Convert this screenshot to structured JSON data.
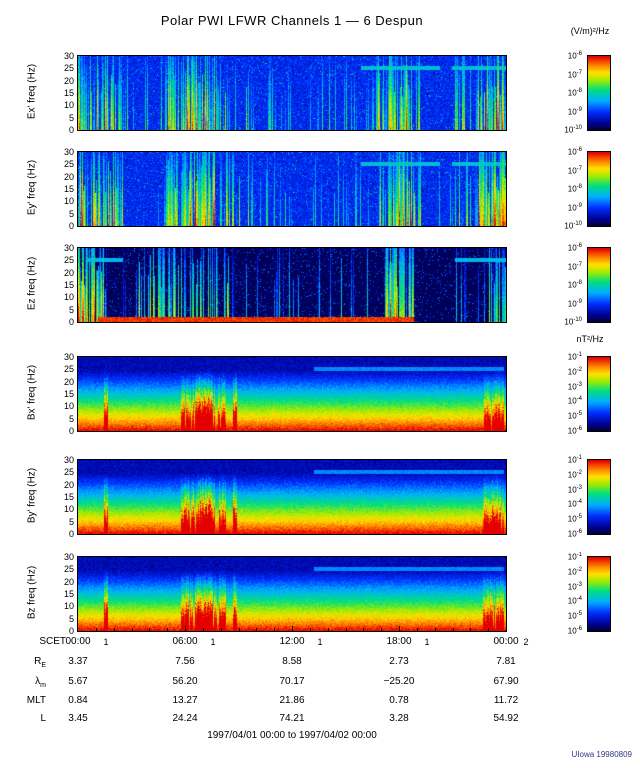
{
  "title": "Polar PWI LFWR Channels 1 — 6 Despun",
  "footer_range": "1997/04/01 00:00 to 1997/04/02 00:00",
  "credit": "UIowa 19980809",
  "x_axis": {
    "label": "SCET",
    "ticks": [
      "00:00",
      "06:00",
      "12:00",
      "18:00",
      "00:00"
    ],
    "day_marks": [
      "1",
      "1",
      "1",
      "1",
      "2"
    ]
  },
  "colorbars": {
    "electric": {
      "unit": "(V/m)²/Hz",
      "base": "10",
      "exponents": [
        "-6",
        "-7",
        "-8",
        "-9",
        "-10"
      ]
    },
    "magnetic": {
      "unit": "nT²/Hz",
      "base": "10",
      "exponents": [
        "-1",
        "-2",
        "-3",
        "-4",
        "-5",
        "-6"
      ]
    }
  },
  "ephemeris": {
    "rows": [
      {
        "label": "R",
        "sub": "E",
        "values": [
          "3.37",
          "7.56",
          "8.58",
          "2.73",
          "7.81"
        ]
      },
      {
        "label": "λ",
        "sub": "m",
        "values": [
          "5.67",
          "56.20",
          "70.17",
          "−25.20",
          "67.90"
        ]
      },
      {
        "label": "MLT",
        "sub": "",
        "values": [
          "0.84",
          "13.27",
          "21.86",
          "0.78",
          "11.72"
        ]
      },
      {
        "label": "L",
        "sub": "",
        "values": [
          "3.45",
          "24.24",
          "74.21",
          "3.28",
          "54.92"
        ]
      }
    ]
  },
  "chart_data": {
    "type": "heatmap",
    "title": "Polar PWI LFWR Channels 1 — 6 Despun",
    "time_range": "1997/04/01 00:00 to 1997/04/02 00:00",
    "x_ticks": [
      "00:00",
      "06:00",
      "12:00",
      "18:00",
      "00:00"
    ],
    "x_day_marks": [
      "1",
      "1",
      "1",
      "1",
      "2"
    ],
    "y_range_hz": [
      0,
      30
    ],
    "y_ticks_hz": [
      0,
      5,
      10,
      15,
      20,
      25,
      30
    ],
    "panels": [
      {
        "id": "ex",
        "ylabel": "Ex' freq (Hz)",
        "kind": "E",
        "colorbar": "electric",
        "seed": 11,
        "scale_range": [
          "1e-10",
          "1e-6"
        ],
        "events": [
          {
            "x0": 0.0,
            "x1": 0.017,
            "density": 0.97,
            "amp": 1.0
          },
          {
            "x0": 0.017,
            "x1": 0.105,
            "density": 0.72,
            "amp": 0.88
          },
          {
            "x0": 0.105,
            "x1": 0.2,
            "density": 0.1,
            "amp": 0.62
          },
          {
            "x0": 0.2,
            "x1": 0.25,
            "density": 0.75,
            "amp": 0.85
          },
          {
            "x0": 0.25,
            "x1": 0.32,
            "density": 0.95,
            "amp": 1.0
          },
          {
            "x0": 0.32,
            "x1": 0.35,
            "density": 0.7,
            "amp": 0.8
          },
          {
            "x0": 0.35,
            "x1": 0.43,
            "density": 0.16,
            "amp": 0.7
          },
          {
            "x0": 0.43,
            "x1": 0.7,
            "density": 0.2,
            "amp": 0.6
          },
          {
            "x0": 0.7,
            "x1": 0.75,
            "density": 0.7,
            "amp": 0.85
          },
          {
            "x0": 0.75,
            "x1": 0.78,
            "density": 0.97,
            "amp": 1.0
          },
          {
            "x0": 0.78,
            "x1": 0.8,
            "density": 0.6,
            "amp": 0.8
          },
          {
            "x0": 0.8,
            "x1": 0.87,
            "density": 0.07,
            "amp": 0.5
          },
          {
            "x0": 0.87,
            "x1": 0.93,
            "density": 0.45,
            "amp": 0.7
          },
          {
            "x0": 0.93,
            "x1": 0.97,
            "density": 0.8,
            "amp": 0.95
          },
          {
            "x0": 0.97,
            "x1": 1.0,
            "density": 0.95,
            "amp": 1.0
          }
        ],
        "hlines": [
          {
            "f": 25.5,
            "amp": 0.42,
            "segs": [
              [
                0.66,
                0.845
              ],
              [
                0.872,
                1.0
              ]
            ]
          }
        ]
      },
      {
        "id": "ey",
        "ylabel": "Ey' freq (Hz)",
        "kind": "E",
        "colorbar": "electric",
        "seed": 23,
        "scale_range": [
          "1e-10",
          "1e-6"
        ],
        "events": [
          {
            "x0": 0.0,
            "x1": 0.017,
            "density": 0.97,
            "amp": 1.0
          },
          {
            "x0": 0.017,
            "x1": 0.105,
            "density": 0.72,
            "amp": 0.88
          },
          {
            "x0": 0.105,
            "x1": 0.2,
            "density": 0.1,
            "amp": 0.62
          },
          {
            "x0": 0.2,
            "x1": 0.25,
            "density": 0.75,
            "amp": 0.85
          },
          {
            "x0": 0.25,
            "x1": 0.32,
            "density": 0.95,
            "amp": 1.0
          },
          {
            "x0": 0.32,
            "x1": 0.35,
            "density": 0.7,
            "amp": 0.8
          },
          {
            "x0": 0.35,
            "x1": 0.43,
            "density": 0.16,
            "amp": 0.7
          },
          {
            "x0": 0.43,
            "x1": 0.7,
            "density": 0.2,
            "amp": 0.6
          },
          {
            "x0": 0.7,
            "x1": 0.75,
            "density": 0.7,
            "amp": 0.85
          },
          {
            "x0": 0.75,
            "x1": 0.78,
            "density": 0.97,
            "amp": 1.0
          },
          {
            "x0": 0.78,
            "x1": 0.8,
            "density": 0.6,
            "amp": 0.8
          },
          {
            "x0": 0.8,
            "x1": 0.87,
            "density": 0.07,
            "amp": 0.5
          },
          {
            "x0": 0.87,
            "x1": 0.93,
            "density": 0.45,
            "amp": 0.7
          },
          {
            "x0": 0.93,
            "x1": 0.97,
            "density": 0.8,
            "amp": 0.95
          },
          {
            "x0": 0.97,
            "x1": 1.0,
            "density": 0.95,
            "amp": 1.0
          }
        ],
        "hlines": [
          {
            "f": 25.5,
            "amp": 0.42,
            "segs": [
              [
                0.66,
                0.845
              ],
              [
                0.872,
                1.0
              ]
            ]
          }
        ]
      },
      {
        "id": "ez",
        "ylabel": "Ez freq (Hz)",
        "kind": "E",
        "background": "dark",
        "colorbar": "electric",
        "seed": 37,
        "scale_range": [
          "1e-10",
          "1e-6"
        ],
        "events": [
          {
            "x0": 0.0,
            "x1": 0.022,
            "density": 1.0,
            "amp": 1.0
          },
          {
            "x0": 0.022,
            "x1": 0.06,
            "density": 0.85,
            "amp": 0.95
          },
          {
            "x0": 0.06,
            "x1": 0.13,
            "density": 0.1,
            "amp": 0.45
          },
          {
            "x0": 0.13,
            "x1": 0.36,
            "density": 0.55,
            "amp": 0.8
          },
          {
            "x0": 0.36,
            "x1": 0.69,
            "density": 0.15,
            "amp": 0.55
          },
          {
            "x0": 0.715,
            "x1": 0.755,
            "density": 0.97,
            "amp": 1.0
          },
          {
            "x0": 0.755,
            "x1": 0.785,
            "density": 0.7,
            "amp": 0.85
          },
          {
            "x0": 0.88,
            "x1": 0.96,
            "density": 0.22,
            "amp": 0.5
          },
          {
            "x0": 0.96,
            "x1": 1.0,
            "density": 0.55,
            "amp": 0.7
          }
        ],
        "bottom_band": {
          "x0": 0.045,
          "x1": 0.785,
          "f_max": 2.2
        },
        "hlines": [
          {
            "f": 25.5,
            "amp": 0.4,
            "segs": [
              [
                0.02,
                0.105
              ],
              [
                0.88,
                1.0
              ]
            ]
          }
        ]
      },
      {
        "id": "bx",
        "ylabel": "Bx' freq (Hz)",
        "kind": "B",
        "colorbar": "magnetic",
        "seed": 41,
        "scale_range": [
          "1e-6",
          "1e-1"
        ],
        "events": [
          {
            "x0": 0.06,
            "x1": 0.07,
            "density": 1.0,
            "amp": 0.55
          },
          {
            "x0": 0.24,
            "x1": 0.275,
            "density": 0.85,
            "amp": 0.5
          },
          {
            "x0": 0.275,
            "x1": 0.315,
            "density": 1.0,
            "amp": 0.75
          },
          {
            "x0": 0.315,
            "x1": 0.345,
            "density": 0.8,
            "amp": 0.45
          },
          {
            "x0": 0.36,
            "x1": 0.37,
            "density": 1.0,
            "amp": 0.55
          },
          {
            "x0": 0.945,
            "x1": 0.995,
            "density": 0.85,
            "amp": 0.45
          }
        ],
        "hlines": [
          {
            "f": 25.5,
            "amp": 0.33,
            "segs": [
              [
                0.55,
                0.995
              ]
            ]
          }
        ]
      },
      {
        "id": "by",
        "ylabel": "By' freq (Hz)",
        "kind": "B",
        "colorbar": "magnetic",
        "seed": 53,
        "scale_range": [
          "1e-6",
          "1e-1"
        ],
        "events": [
          {
            "x0": 0.06,
            "x1": 0.07,
            "density": 1.0,
            "amp": 0.55
          },
          {
            "x0": 0.24,
            "x1": 0.275,
            "density": 0.85,
            "amp": 0.5
          },
          {
            "x0": 0.275,
            "x1": 0.315,
            "density": 1.0,
            "amp": 0.75
          },
          {
            "x0": 0.315,
            "x1": 0.345,
            "density": 0.8,
            "amp": 0.45
          },
          {
            "x0": 0.36,
            "x1": 0.37,
            "density": 1.0,
            "amp": 0.55
          },
          {
            "x0": 0.945,
            "x1": 0.995,
            "density": 0.85,
            "amp": 0.45
          }
        ],
        "hlines": [
          {
            "f": 25.5,
            "amp": 0.33,
            "segs": [
              [
                0.55,
                0.995
              ]
            ]
          }
        ]
      },
      {
        "id": "bz",
        "ylabel": "Bz freq (Hz)",
        "kind": "B",
        "colorbar": "magnetic",
        "seed": 67,
        "scale_range": [
          "1e-6",
          "1e-1"
        ],
        "events": [
          {
            "x0": 0.06,
            "x1": 0.07,
            "density": 1.0,
            "amp": 0.6
          },
          {
            "x0": 0.24,
            "x1": 0.275,
            "density": 0.85,
            "amp": 0.5
          },
          {
            "x0": 0.275,
            "x1": 0.315,
            "density": 1.0,
            "amp": 0.75
          },
          {
            "x0": 0.315,
            "x1": 0.345,
            "density": 0.8,
            "amp": 0.45
          },
          {
            "x0": 0.36,
            "x1": 0.37,
            "density": 1.0,
            "amp": 0.55
          },
          {
            "x0": 0.945,
            "x1": 0.995,
            "density": 0.85,
            "amp": 0.45
          }
        ],
        "hlines": [
          {
            "f": 25.5,
            "amp": 0.33,
            "segs": [
              [
                0.55,
                0.995
              ]
            ]
          }
        ]
      }
    ]
  }
}
